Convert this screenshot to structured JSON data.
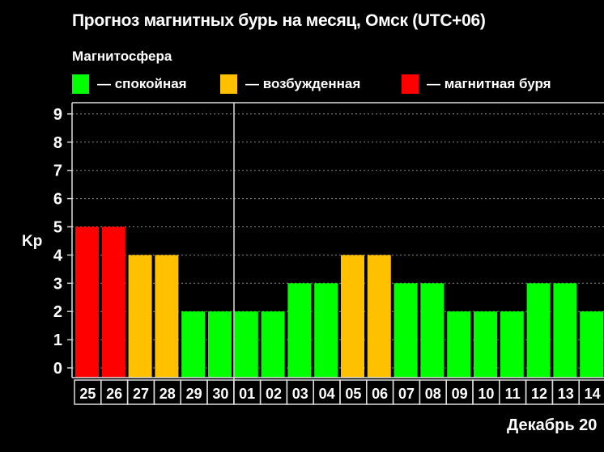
{
  "title": "Прогноз магнитных бурь на месяц, Омск (UTC+06)",
  "legend": {
    "title": "Магнитосфера",
    "items": [
      {
        "label": "— спокойная",
        "color": "#00ff00"
      },
      {
        "label": "— возбужденная",
        "color": "#ffc000"
      },
      {
        "label": "— магнитная буря",
        "color": "#ff0000"
      }
    ]
  },
  "chart_data": {
    "type": "bar",
    "ylabel": "Kp",
    "xlabel": "Декабрь 20",
    "ylim": [
      0,
      9
    ],
    "yticks": [
      0,
      1,
      2,
      3,
      4,
      5,
      6,
      7,
      8,
      9
    ],
    "grid": true,
    "categories": [
      "25",
      "26",
      "27",
      "28",
      "29",
      "30",
      "01",
      "02",
      "03",
      "04",
      "05",
      "06",
      "07",
      "08",
      "09",
      "10",
      "11",
      "12",
      "13",
      "14"
    ],
    "values": [
      5,
      5,
      4,
      4,
      2,
      2,
      2,
      2,
      3,
      3,
      4,
      4,
      3,
      3,
      2,
      2,
      2,
      3,
      3,
      2
    ],
    "colors": {
      "quiet": "#00ff00",
      "excited": "#ffc000",
      "storm": "#ff0000"
    }
  }
}
